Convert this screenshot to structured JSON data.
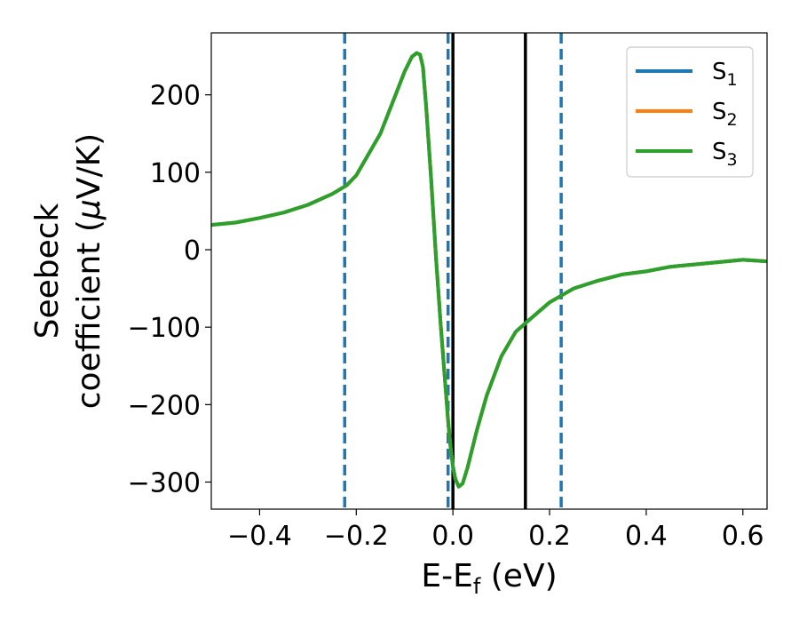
{
  "chart_data": {
    "type": "line",
    "xlabel": {
      "main": "E-E",
      "sub": "f",
      "rest": " (eV)"
    },
    "ylabel": {
      "line1": "Seebeck",
      "line2": "coefficient  (",
      "mu": "μ",
      "line2_rest": "V/K)"
    },
    "xlim": [
      -0.5,
      0.65
    ],
    "ylim": [
      -335,
      280
    ],
    "x_ticks": [
      -0.4,
      -0.2,
      0.0,
      0.2,
      0.4,
      0.6
    ],
    "x_tick_labels": [
      "−0.4",
      "−0.2",
      "0.0",
      "0.2",
      "0.4",
      "0.6"
    ],
    "y_ticks": [
      200,
      100,
      0,
      -100,
      -200,
      -300
    ],
    "y_tick_labels": [
      "200",
      "100",
      "0",
      "−100",
      "−200",
      "−300"
    ],
    "grid": false,
    "legend_position": "top-right",
    "series": [
      {
        "name": "S",
        "sub": "1",
        "color": "#1f77b4",
        "x": [
          -0.5,
          -0.45,
          -0.4,
          -0.35,
          -0.3,
          -0.25,
          -0.22,
          -0.2,
          -0.15,
          -0.12,
          -0.1,
          -0.085,
          -0.075,
          -0.068,
          -0.062,
          -0.055,
          -0.045,
          -0.035,
          -0.025,
          -0.015,
          -0.01,
          -0.005,
          0.0,
          0.005,
          0.012,
          0.02,
          0.03,
          0.05,
          0.07,
          0.1,
          0.13,
          0.15,
          0.2,
          0.25,
          0.3,
          0.35,
          0.4,
          0.45,
          0.5,
          0.55,
          0.6,
          0.65
        ],
        "y": [
          32,
          35,
          41,
          48,
          58,
          72,
          83,
          96,
          150,
          198,
          230,
          249,
          254,
          252,
          236,
          182,
          90,
          -10,
          -100,
          -180,
          -220,
          -255,
          -280,
          -296,
          -306,
          -302,
          -282,
          -232,
          -188,
          -138,
          -106,
          -95,
          -68,
          -50,
          -40,
          -32,
          -28,
          -22,
          -19,
          -16,
          -13,
          -15
        ]
      },
      {
        "name": "S",
        "sub": "2",
        "color": "#ff7f0e",
        "x": [
          -0.5,
          -0.45,
          -0.4,
          -0.35,
          -0.3,
          -0.25,
          -0.22,
          -0.2,
          -0.15,
          -0.12,
          -0.1,
          -0.085,
          -0.075,
          -0.068,
          -0.062,
          -0.055,
          -0.045,
          -0.035,
          -0.025,
          -0.015,
          -0.01,
          -0.005,
          0.0,
          0.005,
          0.012,
          0.02,
          0.03,
          0.05,
          0.07,
          0.1,
          0.13,
          0.15,
          0.2,
          0.25,
          0.3,
          0.35,
          0.4,
          0.45,
          0.5,
          0.55,
          0.6,
          0.65
        ],
        "y": [
          32,
          35,
          41,
          48,
          58,
          72,
          83,
          96,
          150,
          198,
          230,
          249,
          254,
          252,
          236,
          182,
          90,
          -10,
          -100,
          -180,
          -220,
          -255,
          -280,
          -296,
          -306,
          -302,
          -282,
          -232,
          -188,
          -138,
          -106,
          -95,
          -68,
          -50,
          -40,
          -32,
          -28,
          -22,
          -19,
          -16,
          -13,
          -15
        ]
      },
      {
        "name": "S",
        "sub": "3",
        "color": "#2ca02c",
        "x": [
          -0.5,
          -0.45,
          -0.4,
          -0.35,
          -0.3,
          -0.25,
          -0.22,
          -0.2,
          -0.15,
          -0.12,
          -0.1,
          -0.085,
          -0.075,
          -0.068,
          -0.062,
          -0.055,
          -0.045,
          -0.035,
          -0.025,
          -0.015,
          -0.01,
          -0.005,
          0.0,
          0.005,
          0.012,
          0.02,
          0.03,
          0.05,
          0.07,
          0.1,
          0.13,
          0.15,
          0.2,
          0.25,
          0.3,
          0.35,
          0.4,
          0.45,
          0.5,
          0.55,
          0.6,
          0.65
        ],
        "y": [
          32,
          35,
          41,
          48,
          58,
          72,
          83,
          96,
          150,
          198,
          230,
          249,
          254,
          252,
          236,
          182,
          90,
          -10,
          -100,
          -180,
          -220,
          -255,
          -280,
          -296,
          -306,
          -302,
          -282,
          -232,
          -188,
          -138,
          -106,
          -95,
          -68,
          -50,
          -40,
          -32,
          -28,
          -22,
          -19,
          -16,
          -13,
          -15
        ]
      }
    ],
    "vertical_lines": [
      {
        "x": -0.224,
        "style": "dashed",
        "color": "#1f77b4"
      },
      {
        "x": -0.01,
        "style": "dashed",
        "color": "#1f77b4"
      },
      {
        "x": 0.224,
        "style": "dashed",
        "color": "#1f77b4"
      },
      {
        "x": 0.0,
        "style": "solid",
        "color": "#000000"
      },
      {
        "x": 0.15,
        "style": "solid",
        "color": "#000000"
      }
    ]
  }
}
